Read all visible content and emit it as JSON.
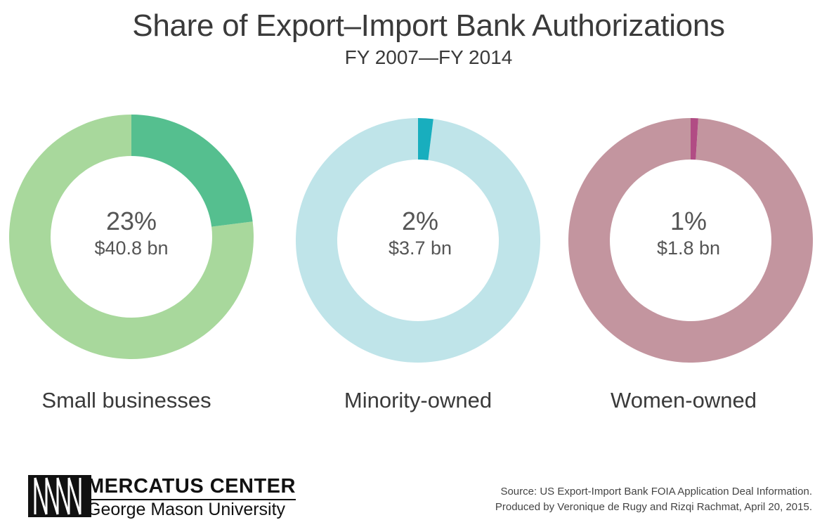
{
  "chart_data": {
    "type": "pie",
    "title": "Share of Export–Import Bank Authorizations",
    "subtitle": "FY 2007—FY 2014",
    "charts": [
      {
        "label": "Small businesses",
        "percent_text": "23%",
        "value_text": "$40.8 bn",
        "share": 23,
        "color": "#55bf8f",
        "remainder_color": "#a8d89c"
      },
      {
        "label": "Minority-owned",
        "percent_text": "2%",
        "value_text": "$3.7 bn",
        "share": 2,
        "color": "#18aebe",
        "remainder_color": "#bfe4e9"
      },
      {
        "label": "Women-owned",
        "percent_text": "1%",
        "value_text": "$1.8 bn",
        "share": 1,
        "color": "#b14c84",
        "remainder_color": "#c3959f"
      }
    ]
  },
  "footer": {
    "org_name": "MERCATUS CENTER",
    "org_sub": "George Mason University",
    "source_line1": "Source: US Export-Import Bank FOIA Application Deal Information.",
    "source_line2": "Produced by Veronique de Rugy and Rizqi Rachmat, April 20, 2015."
  }
}
